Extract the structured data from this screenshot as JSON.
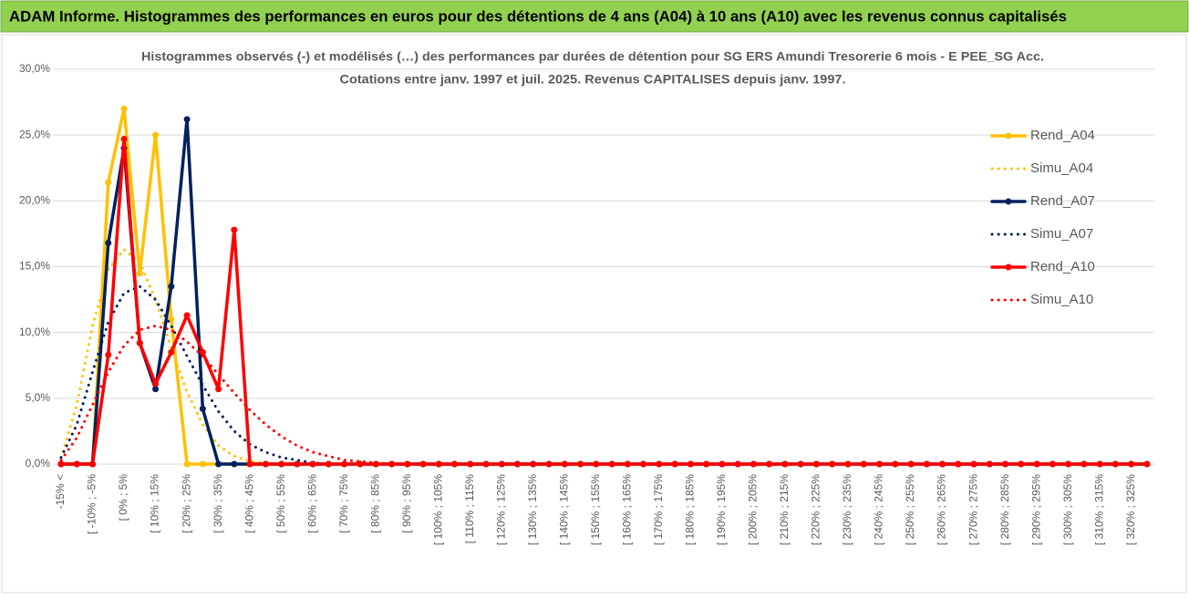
{
  "header": "ADAM Informe. Histogrammes des performances en euros pour des détentions de 4 ans (A04) à 10 ans (A10) avec les revenus connus capitalisés",
  "chart_data": {
    "type": "line",
    "title": "Histogrammes observés (-) et modélisés (…)  des performances par durées de détention pour SG ERS Amundi Tresorerie 6 mois - E PEE_SG Acc.",
    "subtitle": "Cotations entre janv. 1997 et juil. 2025. Revenus CAPITALISES depuis janv. 1997.",
    "categories": [
      "-15% <",
      null,
      "[ -10% ; -5%",
      null,
      "[ 0% ; 5%",
      null,
      "[ 10% ; 15%",
      null,
      "[ 20% ; 25%",
      null,
      "[ 30% ; 35%",
      null,
      "[ 40% ; 45%",
      null,
      "[ 50% ; 55%",
      null,
      "[ 60% ; 65%",
      null,
      "[ 70% ; 75%",
      null,
      "[ 80% ; 85%",
      null,
      "[ 90% ; 95%",
      null,
      "[ 100% ; 105%",
      null,
      "[ 110% ; 115%",
      null,
      "[ 120% ; 125%",
      null,
      "[ 130% ; 135%",
      null,
      "[ 140% ; 145%",
      null,
      "[ 150% ; 155%",
      null,
      "[ 160% ; 165%",
      null,
      "[ 170% ; 175%",
      null,
      "[ 180% ; 185%",
      null,
      "[ 190% ; 195%",
      null,
      "[ 200% ; 205%",
      null,
      "[ 210% ; 215%",
      null,
      "[ 220% ; 225%",
      null,
      "[ 230% ; 235%",
      null,
      "[ 240% ; 245%",
      null,
      "[ 250% ; 255%",
      null,
      "[ 260% ; 265%",
      null,
      "[ 270% ; 275%",
      null,
      "[ 280% ; 285%",
      null,
      "[ 290% ; 295%",
      null,
      "[ 300% ; 305%",
      null,
      "[ 310% ; 315%",
      null,
      "[ 320% ; 325%",
      null
    ],
    "series": [
      {
        "name": "Rend_A04",
        "color": "#ffc000",
        "style": "solid",
        "markers": true,
        "values": [
          0,
          0,
          0,
          21.4,
          27,
          14.5,
          25,
          11,
          0,
          0,
          0,
          0,
          0,
          0,
          0,
          0,
          0,
          0,
          0,
          0,
          0,
          0,
          0,
          0,
          0,
          0,
          0,
          0,
          0,
          0,
          0,
          0,
          0,
          0,
          0,
          0,
          0,
          0,
          0,
          0,
          0,
          0,
          0,
          0,
          0,
          0,
          0,
          0,
          0,
          0,
          0,
          0,
          0,
          0,
          0,
          0,
          0,
          0,
          0,
          0,
          0,
          0,
          0,
          0,
          0,
          0,
          0,
          0,
          0,
          0
        ]
      },
      {
        "name": "Simu_A04",
        "color": "#ffc000",
        "style": "dotted",
        "markers": false,
        "values": [
          0.5,
          4.5,
          10.5,
          14.8,
          16.3,
          15.3,
          12.5,
          8.8,
          5.5,
          3,
          1.4,
          0.6,
          0.2,
          0.1,
          0,
          0,
          0,
          0,
          0,
          0,
          0,
          0,
          0,
          0,
          0,
          0,
          0,
          0,
          0,
          0,
          0,
          0,
          0,
          0,
          0,
          0,
          0,
          0,
          0,
          0,
          0,
          0,
          0,
          0,
          0,
          0,
          0,
          0,
          0,
          0,
          0,
          0,
          0,
          0,
          0,
          0,
          0,
          0,
          0,
          0,
          0,
          0,
          0,
          0,
          0,
          0,
          0,
          0,
          0,
          0
        ]
      },
      {
        "name": "Rend_A07",
        "color": "#002060",
        "style": "solid",
        "markers": true,
        "values": [
          0,
          0,
          0,
          16.8,
          24,
          9.2,
          5.7,
          13.5,
          26.2,
          4.2,
          0,
          0,
          0,
          0,
          0,
          0,
          0,
          0,
          0,
          0,
          0,
          0,
          0,
          0,
          0,
          0,
          0,
          0,
          0,
          0,
          0,
          0,
          0,
          0,
          0,
          0,
          0,
          0,
          0,
          0,
          0,
          0,
          0,
          0,
          0,
          0,
          0,
          0,
          0,
          0,
          0,
          0,
          0,
          0,
          0,
          0,
          0,
          0,
          0,
          0,
          0,
          0,
          0,
          0,
          0,
          0,
          0,
          0,
          0,
          0
        ]
      },
      {
        "name": "Simu_A07",
        "color": "#002060",
        "style": "dotted",
        "markers": false,
        "values": [
          0.5,
          3,
          7,
          10.8,
          13,
          13.5,
          12.5,
          10.5,
          8.2,
          6,
          4,
          2.5,
          1.5,
          0.9,
          0.5,
          0.3,
          0.1,
          0,
          0,
          0,
          0,
          0,
          0,
          0,
          0,
          0,
          0,
          0,
          0,
          0,
          0,
          0,
          0,
          0,
          0,
          0,
          0,
          0,
          0,
          0,
          0,
          0,
          0,
          0,
          0,
          0,
          0,
          0,
          0,
          0,
          0,
          0,
          0,
          0,
          0,
          0,
          0,
          0,
          0,
          0,
          0,
          0,
          0,
          0,
          0,
          0,
          0,
          0,
          0,
          0
        ]
      },
      {
        "name": "Rend_A10",
        "color": "#ff0000",
        "style": "solid",
        "markers": true,
        "values": [
          0,
          0,
          0,
          8.3,
          24.7,
          9.2,
          6.1,
          8.5,
          11.3,
          8.5,
          5.7,
          17.8,
          0,
          0,
          0,
          0,
          0,
          0,
          0,
          0,
          0,
          0,
          0,
          0,
          0,
          0,
          0,
          0,
          0,
          0,
          0,
          0,
          0,
          0,
          0,
          0,
          0,
          0,
          0,
          0,
          0,
          0,
          0,
          0,
          0,
          0,
          0,
          0,
          0,
          0,
          0,
          0,
          0,
          0,
          0,
          0,
          0,
          0,
          0,
          0,
          0,
          0,
          0,
          0,
          0,
          0,
          0,
          0,
          0,
          0
        ]
      },
      {
        "name": "Simu_A10",
        "color": "#ff0000",
        "style": "dotted",
        "markers": false,
        "values": [
          0.3,
          2,
          4.5,
          7,
          9,
          10.2,
          10.5,
          10.2,
          9.3,
          8.2,
          6.8,
          5.4,
          4.1,
          3,
          2.1,
          1.4,
          0.9,
          0.6,
          0.3,
          0.2,
          0.1,
          0,
          0,
          0,
          0,
          0,
          0,
          0,
          0,
          0,
          0,
          0,
          0,
          0,
          0,
          0,
          0,
          0,
          0,
          0,
          0,
          0,
          0,
          0,
          0,
          0,
          0,
          0,
          0,
          0,
          0,
          0,
          0,
          0,
          0,
          0,
          0,
          0,
          0,
          0,
          0,
          0,
          0,
          0,
          0,
          0,
          0,
          0,
          0,
          0
        ]
      }
    ],
    "ylim": [
      0,
      30
    ],
    "yticks": [
      {
        "value": 0,
        "label": "0,0%"
      },
      {
        "value": 5,
        "label": "5,0%"
      },
      {
        "value": 10,
        "label": "10,0%"
      },
      {
        "value": 15,
        "label": "15,0%"
      },
      {
        "value": 20,
        "label": "20,0%"
      },
      {
        "value": 25,
        "label": "25,0%"
      },
      {
        "value": 30,
        "label": "30,0%"
      }
    ],
    "grid": true,
    "legend": "right"
  }
}
